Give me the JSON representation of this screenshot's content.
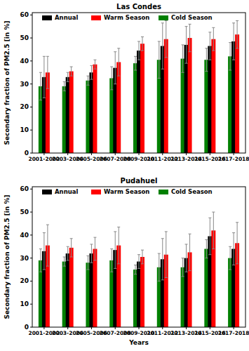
{
  "chart_data": [
    {
      "type": "bar",
      "title": "Las Condes",
      "y_label": "Secondary fraction of PM2.5 [in %]",
      "categories": [
        "2001-2002",
        "2003-2004",
        "2005-2006",
        "2007-2008",
        "2009-2010",
        "2011-2012",
        "2013-2014",
        "2015-2016",
        "2017-2018"
      ],
      "series": [
        {
          "name": "Annual",
          "color": "#000000",
          "values": [
            33,
            33,
            35,
            37,
            44.5,
            46.5,
            47,
            46.5,
            48.5
          ],
          "errors": [
            9,
            2,
            3,
            7,
            4,
            10,
            8,
            6,
            8
          ]
        },
        {
          "name": "Warm Season",
          "color": "#ff0000",
          "values": [
            35,
            35.5,
            38.5,
            39.5,
            47.5,
            49.5,
            50,
            49.5,
            51.5
          ],
          "errors": [
            7,
            2,
            2,
            6,
            3,
            8,
            6,
            5,
            6
          ]
        },
        {
          "name": "Cold Season",
          "color": "#008000",
          "values": [
            29,
            29,
            31.5,
            32.5,
            39,
            40.5,
            41,
            40.5,
            42
          ],
          "errors": [
            6,
            2,
            2,
            5,
            3,
            8,
            6,
            5,
            6
          ]
        }
      ],
      "ylim": [
        0,
        61
      ],
      "yticks": [
        0,
        10,
        20,
        30,
        40,
        50,
        60
      ],
      "grid": false,
      "legend": "upper left"
    },
    {
      "type": "bar",
      "title": "Pudahuel",
      "y_label": "Secondary fraction of PM2.5 [in %]",
      "x_label": "Years",
      "categories": [
        "2001-2002",
        "2003-2004",
        "2005-2006",
        "2007-2008",
        "2009-2010",
        "2011-2012",
        "2013-2014",
        "2015-2016",
        "2017-2018"
      ],
      "series": [
        {
          "name": "Annual",
          "color": "#000000",
          "values": [
            33,
            32,
            32,
            33.5,
            28.5,
            29.5,
            30,
            39.5,
            34
          ],
          "errors": [
            8,
            3,
            4,
            8,
            3,
            9,
            6,
            8,
            7
          ]
        },
        {
          "name": "Warm Season",
          "color": "#ff0000",
          "values": [
            35.5,
            34.5,
            34,
            35.5,
            30.5,
            31.5,
            32.5,
            42,
            36.5
          ],
          "errors": [
            9,
            4,
            5,
            8,
            3,
            10,
            8,
            8,
            9
          ]
        },
        {
          "name": "Cold Season",
          "color": "#008000",
          "values": [
            29,
            28.5,
            28,
            29,
            25,
            26,
            26,
            34,
            30
          ],
          "errors": [
            5,
            2,
            3,
            5,
            2,
            6,
            4,
            4,
            5
          ]
        }
      ],
      "ylim": [
        0,
        61
      ],
      "yticks": [
        0,
        10,
        20,
        30,
        40,
        50,
        60
      ],
      "grid": false,
      "legend": "upper left"
    }
  ]
}
